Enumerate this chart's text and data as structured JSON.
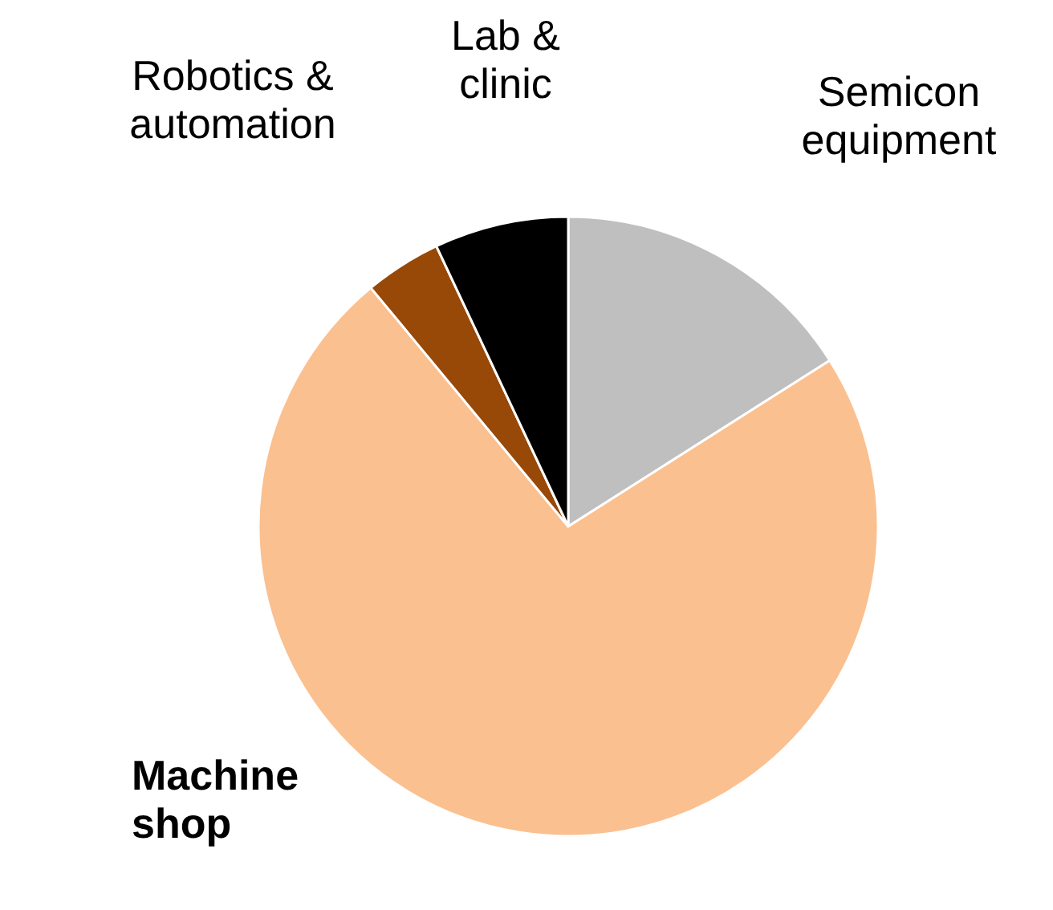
{
  "chart_data": {
    "type": "pie",
    "categories": [
      "Semicon equipment",
      "Machine shop",
      "Robotics & automation",
      "Lab & clinic"
    ],
    "values": [
      16,
      73,
      4,
      7
    ],
    "colors": [
      "#bfbfbf",
      "#fac090",
      "#984807",
      "#000000"
    ]
  }
}
